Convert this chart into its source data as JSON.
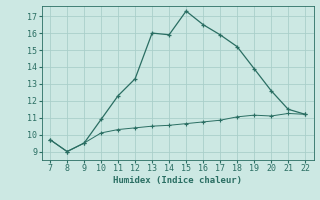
{
  "xlabel": "Humidex (Indice chaleur)",
  "xlim": [
    6.5,
    22.5
  ],
  "ylim": [
    8.5,
    17.6
  ],
  "xticks": [
    7,
    8,
    9,
    10,
    11,
    12,
    13,
    14,
    15,
    16,
    17,
    18,
    19,
    20,
    21,
    22
  ],
  "yticks": [
    9,
    10,
    11,
    12,
    13,
    14,
    15,
    16,
    17
  ],
  "line1_x": [
    7,
    8,
    9,
    10,
    11,
    12,
    13,
    14,
    15,
    16,
    17,
    18,
    19,
    20,
    21,
    22
  ],
  "line1_y": [
    9.7,
    9.0,
    9.5,
    10.9,
    12.3,
    13.3,
    16.0,
    15.9,
    17.3,
    16.5,
    15.9,
    15.2,
    13.9,
    12.6,
    11.5,
    11.2
  ],
  "line2_x": [
    7,
    8,
    9,
    10,
    11,
    12,
    13,
    14,
    15,
    16,
    17,
    18,
    19,
    20,
    21,
    22
  ],
  "line2_y": [
    9.7,
    9.0,
    9.5,
    10.1,
    10.3,
    10.4,
    10.5,
    10.55,
    10.65,
    10.75,
    10.85,
    11.05,
    11.15,
    11.1,
    11.25,
    11.2
  ],
  "line_color": "#2a6e63",
  "bg_color": "#cce8e3",
  "grid_color": "#aacfca",
  "font_color": "#2a6e63",
  "font_family": "monospace",
  "label_fontsize": 6.5,
  "tick_fontsize": 6.0
}
